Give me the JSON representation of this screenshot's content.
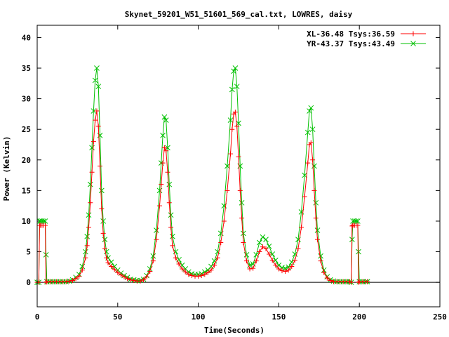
{
  "chart_data": {
    "type": "line",
    "title": "Skynet_59201_W51_51601_569_cal.txt, LOWRES, daisy",
    "xlabel": "Time(Seconds)",
    "ylabel": "Power (Kelvin)",
    "xlim": [
      0,
      250
    ],
    "ylim": [
      -4,
      42
    ],
    "x_ticks": [
      0,
      50,
      100,
      150,
      200,
      250
    ],
    "y_ticks": [
      0,
      5,
      10,
      15,
      20,
      25,
      30,
      35,
      40
    ],
    "legend_position": "top-right",
    "series": [
      {
        "name": "XL-36.48 Tsys:36.59",
        "color": "#ff0000",
        "marker": "plus",
        "points": [
          [
            0,
            0
          ],
          [
            1,
            0
          ],
          [
            1.5,
            9.3
          ],
          [
            2,
            9.3
          ],
          [
            3,
            9.3
          ],
          [
            4,
            9.3
          ],
          [
            5,
            9.3
          ],
          [
            5.5,
            0
          ],
          [
            6,
            0.1
          ],
          [
            8,
            0.1
          ],
          [
            10,
            0.1
          ],
          [
            12,
            0.1
          ],
          [
            14,
            0.1
          ],
          [
            16,
            0.1
          ],
          [
            18,
            0.1
          ],
          [
            20,
            0.2
          ],
          [
            22,
            0.3
          ],
          [
            24,
            0.6
          ],
          [
            26,
            1.0
          ],
          [
            28,
            2.0
          ],
          [
            30,
            4.0
          ],
          [
            31,
            6.0
          ],
          [
            32,
            9.0
          ],
          [
            33,
            13.0
          ],
          [
            34,
            18.0
          ],
          [
            35,
            23.0
          ],
          [
            36,
            26.5
          ],
          [
            37,
            28.0
          ],
          [
            38,
            25.5
          ],
          [
            39,
            19.0
          ],
          [
            40,
            12.0
          ],
          [
            41,
            8.0
          ],
          [
            42,
            5.5
          ],
          [
            43,
            4.0
          ],
          [
            44,
            3.2
          ],
          [
            46,
            2.6
          ],
          [
            48,
            2.1
          ],
          [
            50,
            1.6
          ],
          [
            52,
            1.2
          ],
          [
            54,
            0.9
          ],
          [
            56,
            0.6
          ],
          [
            58,
            0.4
          ],
          [
            60,
            0.3
          ],
          [
            62,
            0.2
          ],
          [
            64,
            0.2
          ],
          [
            66,
            0.4
          ],
          [
            68,
            0.9
          ],
          [
            70,
            1.8
          ],
          [
            72,
            3.5
          ],
          [
            74,
            7.0
          ],
          [
            76,
            12.5
          ],
          [
            77,
            16.0
          ],
          [
            78,
            19.5
          ],
          [
            79,
            22.0
          ],
          [
            80,
            21.5
          ],
          [
            81,
            18.0
          ],
          [
            82,
            13.0
          ],
          [
            83,
            9.0
          ],
          [
            84,
            6.0
          ],
          [
            86,
            4.0
          ],
          [
            88,
            3.0
          ],
          [
            90,
            2.2
          ],
          [
            92,
            1.7
          ],
          [
            94,
            1.3
          ],
          [
            96,
            1.1
          ],
          [
            98,
            1.0
          ],
          [
            100,
            1.0
          ],
          [
            102,
            1.1
          ],
          [
            104,
            1.3
          ],
          [
            106,
            1.6
          ],
          [
            108,
            2.0
          ],
          [
            110,
            2.8
          ],
          [
            112,
            4.0
          ],
          [
            114,
            6.5
          ],
          [
            116,
            10.0
          ],
          [
            118,
            15.0
          ],
          [
            120,
            21.0
          ],
          [
            121,
            25.0
          ],
          [
            122,
            27.5
          ],
          [
            123,
            27.8
          ],
          [
            124,
            25.5
          ],
          [
            125,
            20.5
          ],
          [
            126,
            15.0
          ],
          [
            127,
            10.5
          ],
          [
            128,
            6.5
          ],
          [
            130,
            3.5
          ],
          [
            132,
            2.2
          ],
          [
            134,
            2.3
          ],
          [
            136,
            3.5
          ],
          [
            138,
            5.0
          ],
          [
            140,
            5.8
          ],
          [
            142,
            5.5
          ],
          [
            144,
            4.6
          ],
          [
            146,
            3.6
          ],
          [
            148,
            2.8
          ],
          [
            150,
            2.2
          ],
          [
            152,
            1.9
          ],
          [
            154,
            1.8
          ],
          [
            156,
            2.0
          ],
          [
            158,
            2.6
          ],
          [
            160,
            3.6
          ],
          [
            162,
            5.5
          ],
          [
            164,
            9.0
          ],
          [
            166,
            14.0
          ],
          [
            168,
            19.5
          ],
          [
            169,
            22.5
          ],
          [
            170,
            22.8
          ],
          [
            171,
            20.0
          ],
          [
            172,
            15.0
          ],
          [
            173,
            10.5
          ],
          [
            174,
            7.0
          ],
          [
            176,
            3.5
          ],
          [
            178,
            1.6
          ],
          [
            180,
            0.7
          ],
          [
            182,
            0.3
          ],
          [
            184,
            0.1
          ],
          [
            186,
            0.1
          ],
          [
            188,
            0.1
          ],
          [
            190,
            0.1
          ],
          [
            192,
            0.1
          ],
          [
            194,
            0.1
          ],
          [
            195,
            0
          ],
          [
            195.5,
            9.2
          ],
          [
            196,
            9.3
          ],
          [
            197,
            9.3
          ],
          [
            198,
            9.3
          ],
          [
            199,
            9.3
          ],
          [
            199.5,
            0
          ],
          [
            200,
            0.1
          ],
          [
            202,
            0.1
          ],
          [
            204,
            0.1
          ],
          [
            205,
            0.1
          ]
        ]
      },
      {
        "name": "YR-43.37 Tsys:43.49",
        "color": "#00c000",
        "marker": "cross",
        "points": [
          [
            0,
            0
          ],
          [
            1,
            0
          ],
          [
            1.5,
            10.0
          ],
          [
            2,
            10.0
          ],
          [
            3,
            10.0
          ],
          [
            4,
            10.0
          ],
          [
            5,
            10.0
          ],
          [
            5.5,
            4.5
          ],
          [
            6,
            0.1
          ],
          [
            8,
            0.1
          ],
          [
            10,
            0.1
          ],
          [
            12,
            0.1
          ],
          [
            14,
            0.1
          ],
          [
            16,
            0.1
          ],
          [
            18,
            0.1
          ],
          [
            20,
            0.2
          ],
          [
            22,
            0.4
          ],
          [
            24,
            0.8
          ],
          [
            26,
            1.3
          ],
          [
            28,
            2.6
          ],
          [
            30,
            5.0
          ],
          [
            31,
            7.5
          ],
          [
            32,
            11.0
          ],
          [
            33,
            16.0
          ],
          [
            34,
            22.0
          ],
          [
            35,
            28.0
          ],
          [
            36,
            33.0
          ],
          [
            37,
            35.0
          ],
          [
            38,
            32.0
          ],
          [
            39,
            24.0
          ],
          [
            40,
            15.0
          ],
          [
            41,
            10.0
          ],
          [
            42,
            7.0
          ],
          [
            43,
            5.0
          ],
          [
            44,
            4.0
          ],
          [
            46,
            3.3
          ],
          [
            48,
            2.6
          ],
          [
            50,
            2.0
          ],
          [
            52,
            1.5
          ],
          [
            54,
            1.1
          ],
          [
            56,
            0.8
          ],
          [
            58,
            0.5
          ],
          [
            60,
            0.4
          ],
          [
            62,
            0.3
          ],
          [
            64,
            0.3
          ],
          [
            66,
            0.5
          ],
          [
            68,
            1.1
          ],
          [
            70,
            2.2
          ],
          [
            72,
            4.3
          ],
          [
            74,
            8.5
          ],
          [
            76,
            15.0
          ],
          [
            77,
            19.5
          ],
          [
            78,
            24.0
          ],
          [
            79,
            27.0
          ],
          [
            80,
            26.5
          ],
          [
            81,
            22.0
          ],
          [
            82,
            16.0
          ],
          [
            83,
            11.0
          ],
          [
            84,
            7.5
          ],
          [
            86,
            5.0
          ],
          [
            88,
            3.7
          ],
          [
            90,
            2.8
          ],
          [
            92,
            2.2
          ],
          [
            94,
            1.7
          ],
          [
            96,
            1.4
          ],
          [
            98,
            1.3
          ],
          [
            100,
            1.3
          ],
          [
            102,
            1.4
          ],
          [
            104,
            1.7
          ],
          [
            106,
            2.0
          ],
          [
            108,
            2.6
          ],
          [
            110,
            3.5
          ],
          [
            112,
            5.0
          ],
          [
            114,
            8.0
          ],
          [
            116,
            12.5
          ],
          [
            118,
            19.0
          ],
          [
            120,
            26.5
          ],
          [
            121,
            31.5
          ],
          [
            122,
            34.5
          ],
          [
            123,
            35.0
          ],
          [
            124,
            32.0
          ],
          [
            125,
            26.0
          ],
          [
            126,
            19.0
          ],
          [
            127,
            13.0
          ],
          [
            128,
            8.0
          ],
          [
            130,
            4.5
          ],
          [
            132,
            2.8
          ],
          [
            134,
            3.0
          ],
          [
            136,
            4.5
          ],
          [
            138,
            6.5
          ],
          [
            140,
            7.4
          ],
          [
            142,
            7.0
          ],
          [
            144,
            5.9
          ],
          [
            146,
            4.6
          ],
          [
            148,
            3.6
          ],
          [
            150,
            2.8
          ],
          [
            152,
            2.4
          ],
          [
            154,
            2.3
          ],
          [
            156,
            2.5
          ],
          [
            158,
            3.3
          ],
          [
            160,
            4.6
          ],
          [
            162,
            7.0
          ],
          [
            164,
            11.5
          ],
          [
            166,
            17.5
          ],
          [
            168,
            24.5
          ],
          [
            169,
            28.0
          ],
          [
            170,
            28.5
          ],
          [
            171,
            25.0
          ],
          [
            172,
            19.0
          ],
          [
            173,
            13.0
          ],
          [
            174,
            8.5
          ],
          [
            176,
            4.3
          ],
          [
            178,
            2.0
          ],
          [
            180,
            0.9
          ],
          [
            182,
            0.4
          ],
          [
            184,
            0.2
          ],
          [
            186,
            0.1
          ],
          [
            188,
            0.1
          ],
          [
            190,
            0.1
          ],
          [
            192,
            0.1
          ],
          [
            194,
            0.1
          ],
          [
            195,
            0
          ],
          [
            195.5,
            7.0
          ],
          [
            196,
            10.0
          ],
          [
            197,
            10.0
          ],
          [
            198,
            10.0
          ],
          [
            199,
            10.0
          ],
          [
            199.5,
            5.0
          ],
          [
            200,
            0.1
          ],
          [
            202,
            0.1
          ],
          [
            204,
            0.1
          ],
          [
            205,
            0.1
          ]
        ]
      }
    ]
  }
}
